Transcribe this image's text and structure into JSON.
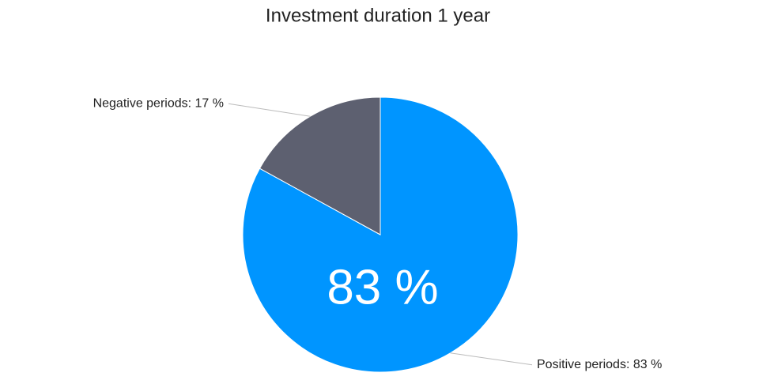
{
  "chart_data": {
    "type": "pie",
    "title": "Investment duration 1 year",
    "categories": [
      "Positive periods",
      "Negative periods"
    ],
    "values": [
      83,
      17
    ],
    "value_labels": [
      "Positive periods: 83 %",
      "Negative periods: 17 %"
    ],
    "colors": [
      "#0095ff",
      "#5d6070"
    ],
    "center_label": "83 %"
  }
}
